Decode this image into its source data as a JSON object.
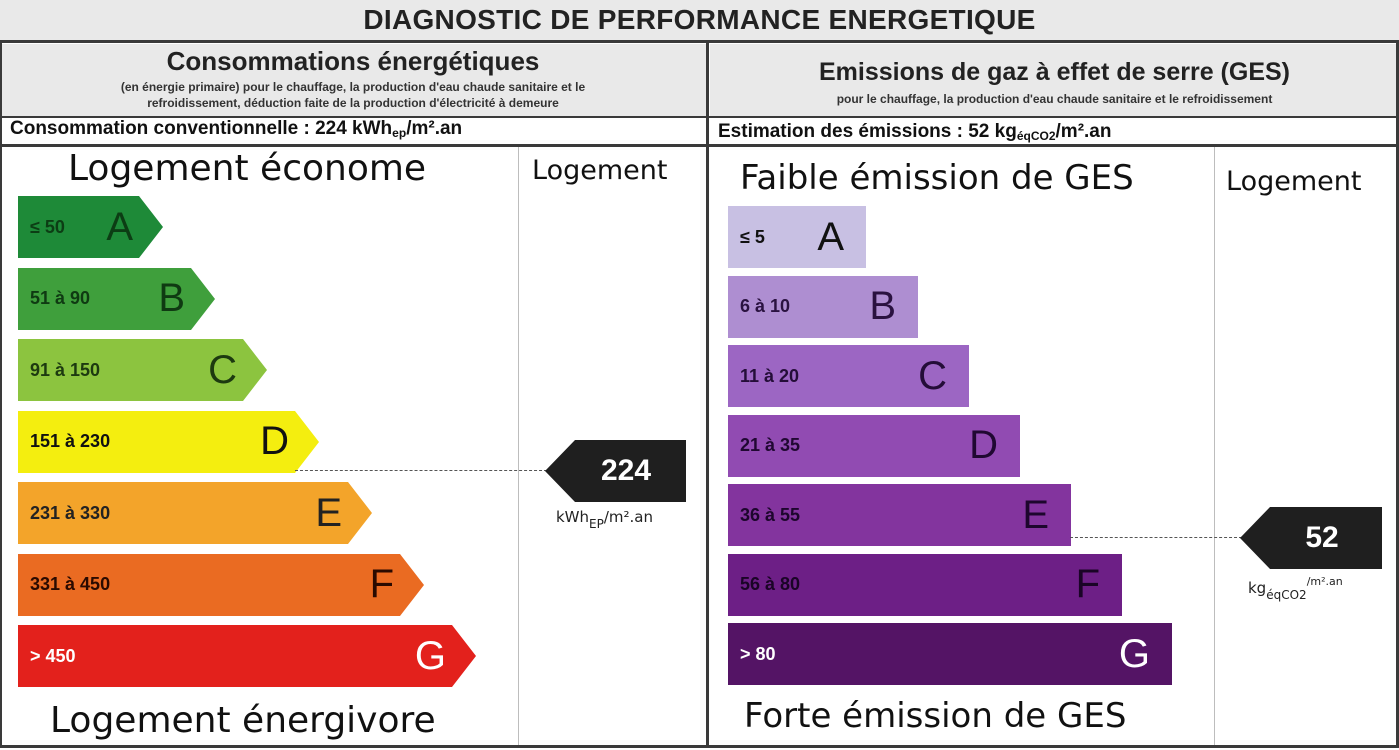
{
  "title": "DIAGNOSTIC DE PERFORMANCE ENERGETIQUE",
  "energy": {
    "heading": "Consommations énergétiques",
    "subheading_line1": "(en énergie primaire) pour le chauffage, la production d'eau chaude sanitaire et le",
    "subheading_line2": "refroidissement, déduction faite de la production d'électricité à demeure",
    "conso_label": "Consommation conventionnelle : 224 kWh",
    "conso_sub": "ep",
    "conso_suffix": "/m².an",
    "top_label": "Logement économe",
    "bottom_label": "Logement énergivore",
    "column_label": "Logement",
    "value": "224",
    "unit_main": "kWh",
    "unit_sub": "EP",
    "unit_suffix": "/m².an",
    "current_class": "D",
    "classes": [
      {
        "range": "≤ 50",
        "letter": "A",
        "color": "#1e8a38",
        "text_color": "#0c3d14"
      },
      {
        "range": "51 à 90",
        "letter": "B",
        "color": "#3f9f3c",
        "text_color": "#0f3a12"
      },
      {
        "range": "91 à 150",
        "letter": "C",
        "color": "#8cc43f",
        "text_color": "#1d3a10"
      },
      {
        "range": "151 à 230",
        "letter": "D",
        "color": "#f4ee0f",
        "text_color": "#111111"
      },
      {
        "range": "231 à 330",
        "letter": "E",
        "color": "#f3a42a",
        "text_color": "#222222"
      },
      {
        "range": "331 à 450",
        "letter": "F",
        "color": "#ea6b22",
        "text_color": "#2a0a00"
      },
      {
        "range": "> 450",
        "letter": "G",
        "color": "#e3211c",
        "text_color": "#ffffff"
      }
    ]
  },
  "ges": {
    "heading": "Emissions de gaz à effet de serre (GES)",
    "subheading": "pour le chauffage, la production d'eau chaude sanitaire et le refroidissement",
    "estimation_label": "Estimation des émissions : 52 kg",
    "estimation_sub": "éqCO2",
    "estimation_suffix": "/m².an",
    "top_label": "Faible émission de GES",
    "bottom_label": "Forte émission de GES",
    "column_label": "Logement",
    "value": "52",
    "unit_main": "kg",
    "unit_sub": "éqCO2",
    "unit_suffix": "/m².an",
    "current_class": "E",
    "classes": [
      {
        "range": "≤ 5",
        "letter": "A",
        "color": "#c8c0e3",
        "text_color": "#111111"
      },
      {
        "range": "6 à 10",
        "letter": "B",
        "color": "#ae8ed1",
        "text_color": "#2a1240"
      },
      {
        "range": "11 à 20",
        "letter": "C",
        "color": "#9c66c3",
        "text_color": "#240d38"
      },
      {
        "range": "21 à 35",
        "letter": "D",
        "color": "#914bb2",
        "text_color": "#200832"
      },
      {
        "range": "36 à 55",
        "letter": "E",
        "color": "#83349e",
        "text_color": "#1d062d"
      },
      {
        "range": "56 à 80",
        "letter": "F",
        "color": "#6d1f86",
        "text_color": "#1a0426"
      },
      {
        "range": "> 80",
        "letter": "G",
        "color": "#541465",
        "text_color": "#ffffff"
      }
    ]
  }
}
